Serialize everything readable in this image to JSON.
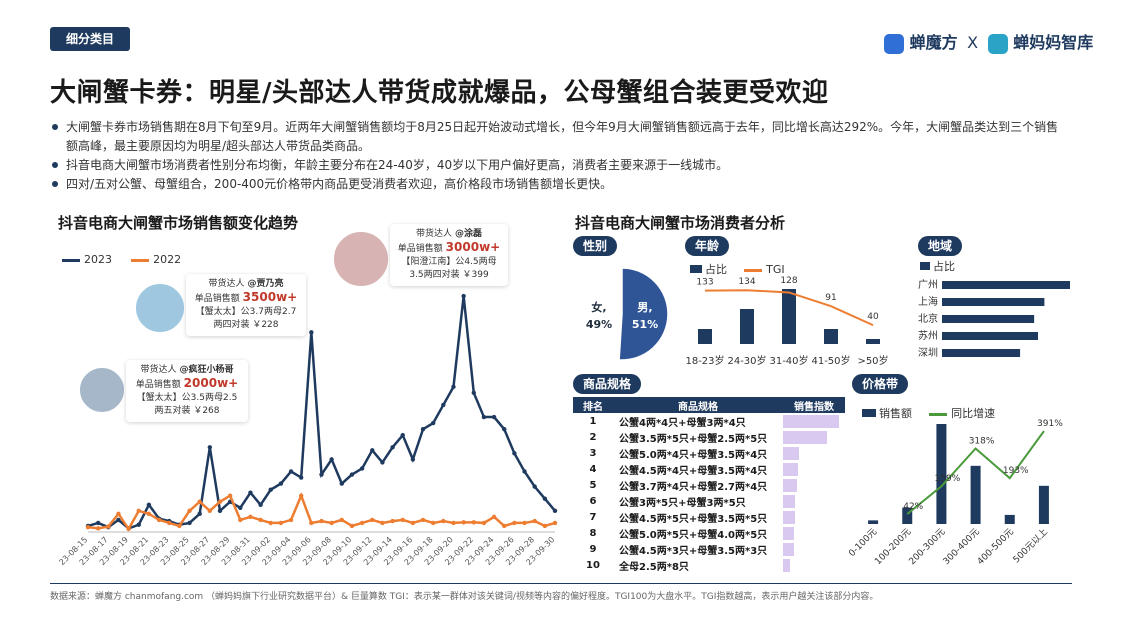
{
  "header": {
    "tag": "细分类目",
    "logo_left": "蝉魔方",
    "logo_x": "X",
    "logo_right": "蝉妈妈智库",
    "title": "大闸蟹卡券：明星/头部达人带货成就爆品，公母蟹组合装更受欢迎"
  },
  "bullets": [
    "大闸蟹卡券市场销售期在8月下旬至9月。近两年大闸蟹销售额均于8月25日起开始波动式增长，但今年9月大闸蟹销售额远高于去年，同比增长高达292%。今年，大闸蟹品类达到三个销售额高峰，最主要原因均为明星/超头部达人带货品类商品。",
    "抖音电商大闸蟹市场消费者性别分布均衡，年龄主要分布在24-40岁，40岁以下用户偏好更高，消费者主要来源于一线城市。",
    "四对/五对公蟹、母蟹组合，200-400元价格带内商品更受消费者欢迎，高价格段市场销售额增长更快。"
  ],
  "colors": {
    "navy": "#1f3a5f",
    "orange": "#ed7d31",
    "green": "#4a9a3b",
    "lavender": "#d9c8f0",
    "red": "#c0392b",
    "pie_female": "#8fa9d0",
    "pie_male": "#2f5597"
  },
  "influencers": [
    {
      "role": "带货达人",
      "name": "@疯狂小杨哥",
      "metric_label": "单品销售额",
      "metric": "2000w+",
      "line1": "【蟹太太】公3.5两母2.5",
      "line2": "两五对装 ￥268"
    },
    {
      "role": "带货达人",
      "name": "@贾乃亮",
      "metric_label": "单品销售额",
      "metric": "3500w+",
      "line1": "【蟹太太】公3.7两母2.7",
      "line2": "两四对装 ￥228"
    },
    {
      "role": "带货达人",
      "name": "@涂磊",
      "metric_label": "单品销售额",
      "metric": "3000w+",
      "line1": "【阳澄江南】公4.5两母",
      "line2": "3.5两四对装 ￥399"
    }
  ],
  "sections": {
    "trend_title": "抖音电商大闸蟹市场销售额变化趋势",
    "consumer_title": "抖音电商大闸蟹市场消费者分析",
    "gender_pill": "性别",
    "age_pill": "年龄",
    "region_pill": "地域",
    "spec_pill": "商品规格",
    "price_pill": "价格带"
  },
  "footer": "数据来源：蝉魔方 chanmofang.com （蝉妈妈旗下行业研究数据平台）& 巨量算数 TGI：表示某一群体对该关键词/视频等内容的偏好程度。TGI100为大盘水平。TGI指数越高，表示用户越关注该部分内容。",
  "chart_data": [
    {
      "type": "line",
      "title": "抖音电商大闸蟹市场销售额变化趋势",
      "x": [
        "23-08-15",
        "23-08-16",
        "23-08-17",
        "23-08-18",
        "23-08-19",
        "23-08-20",
        "23-08-21",
        "23-08-22",
        "23-08-23",
        "23-08-24",
        "23-08-25",
        "23-08-26",
        "23-08-27",
        "23-08-28",
        "23-08-29",
        "23-08-30",
        "23-08-31",
        "23-09-01",
        "23-09-02",
        "23-09-03",
        "23-09-04",
        "23-09-05",
        "23-09-06",
        "23-09-07",
        "23-09-08",
        "23-09-09",
        "23-09-10",
        "23-09-11",
        "23-09-12",
        "23-09-13",
        "23-09-14",
        "23-09-15",
        "23-09-16",
        "23-09-17",
        "23-09-18",
        "23-09-19",
        "23-09-20",
        "23-09-21",
        "23-09-22",
        "23-09-23",
        "23-09-24",
        "23-09-25",
        "23-09-26",
        "23-09-27",
        "23-09-28",
        "23-09-29",
        "23-09-30"
      ],
      "x_tick_labels": [
        "23-08-15",
        "23-08-17",
        "23-08-19",
        "23-08-21",
        "23-08-23",
        "23-08-25",
        "23-08-27",
        "23-08-29",
        "23-08-31",
        "23-09-02",
        "23-09-04",
        "23-09-06",
        "23-09-08",
        "23-09-10",
        "23-09-12",
        "23-09-14",
        "23-09-16",
        "23-09-18",
        "23-09-20",
        "23-09-22",
        "23-09-24",
        "23-09-26",
        "23-09-28",
        "23-09-30"
      ],
      "series": [
        {
          "name": "2023",
          "color": "#1f3a5f",
          "values": [
            1.0,
            1.5,
            0.8,
            2.0,
            0.6,
            1.2,
            4.5,
            2.2,
            1.8,
            1.2,
            1.5,
            3.0,
            14.0,
            3.5,
            5.0,
            4.0,
            6.5,
            4.5,
            7.0,
            8.0,
            10.0,
            9.0,
            33.0,
            9.5,
            12.0,
            8.0,
            9.5,
            10.5,
            13.5,
            11.5,
            14.0,
            16.0,
            12.0,
            17.0,
            18.0,
            21.0,
            24.0,
            39.0,
            23.0,
            19.0,
            19.0,
            17.0,
            13.0,
            10.0,
            7.5,
            5.5,
            3.5
          ]
        },
        {
          "name": "2022",
          "color": "#ed7d31",
          "values": [
            0.8,
            0.6,
            0.9,
            3.0,
            0.5,
            3.5,
            3.0,
            2.0,
            1.5,
            1.0,
            3.5,
            5.0,
            3.5,
            5.0,
            6.0,
            2.0,
            2.5,
            2.0,
            1.5,
            1.5,
            2.0,
            6.0,
            1.5,
            1.8,
            1.5,
            2.0,
            1.0,
            1.5,
            2.0,
            1.5,
            1.8,
            2.0,
            1.5,
            2.0,
            1.5,
            1.8,
            1.5,
            1.6,
            1.6,
            1.5,
            2.5,
            1.0,
            1.5,
            1.5,
            1.8,
            1.0,
            1.5
          ]
        }
      ],
      "legend": "top-left"
    },
    {
      "type": "pie",
      "title": "性别",
      "labels": [
        "女,",
        "男,"
      ],
      "values": [
        49,
        51
      ],
      "value_labels": [
        "49%",
        "51%"
      ]
    },
    {
      "type": "bar",
      "title": "年龄",
      "categories": [
        "18-23岁",
        "24-30岁",
        "31-40岁",
        "41-50岁",
        ">50岁"
      ],
      "series": [
        {
          "name": "占比",
          "values": [
            3,
            7,
            11,
            3,
            1
          ]
        },
        {
          "name": "TGI",
          "values": [
            133,
            134,
            128,
            91,
            40
          ]
        }
      ],
      "data_labels": [
        "133",
        "134",
        "128",
        "91",
        "40"
      ]
    },
    {
      "type": "bar",
      "title": "地域",
      "orientation": "horizontal",
      "categories": [
        "广州",
        "上海",
        "北京",
        "苏州",
        "深圳"
      ],
      "series": [
        {
          "name": "占比",
          "values": [
            100,
            80,
            72,
            75,
            61
          ]
        }
      ]
    },
    {
      "type": "table",
      "title": "商品规格",
      "columns": [
        "排名",
        "商品规格",
        "销售指数"
      ],
      "rows": [
        [
          "1",
          "公蟹4两*4只+母蟹3两*4只",
          100
        ],
        [
          "2",
          "公蟹3.5两*5只+母蟹2.5两*5只",
          78
        ],
        [
          "3",
          "公蟹5.0两*4只+母蟹3.5两*4只",
          28
        ],
        [
          "4",
          "公蟹4.5两*4只+母蟹3.5两*4只",
          26
        ],
        [
          "5",
          "公蟹3.7两*4只+母蟹2.7两*4只",
          25
        ],
        [
          "6",
          "公蟹3两*5只+母蟹3两*5只",
          22
        ],
        [
          "7",
          "公蟹4.5两*5只+母蟹3.5两*5只",
          21
        ],
        [
          "8",
          "公蟹5.0两*5只+母蟹4.0两*5只",
          20
        ],
        [
          "9",
          "公蟹4.5两*3只+母蟹3.5两*3只",
          19
        ],
        [
          "10",
          "全母2.5两*8只",
          12
        ]
      ]
    },
    {
      "type": "bar",
      "title": "价格带",
      "categories": [
        "0-100元",
        "100-200元",
        "200-300元",
        "300-400元",
        "400-500元",
        "500元以上"
      ],
      "series": [
        {
          "name": "销售额",
          "type": "bar",
          "values": [
            2,
            9,
            55,
            32,
            5,
            21
          ]
        },
        {
          "name": "同比增速",
          "type": "line",
          "values": [
            null,
            42,
            159,
            318,
            193,
            391
          ]
        }
      ],
      "data_labels": [
        "",
        "42%",
        "159%",
        "318%",
        "193%",
        "391%"
      ]
    }
  ]
}
